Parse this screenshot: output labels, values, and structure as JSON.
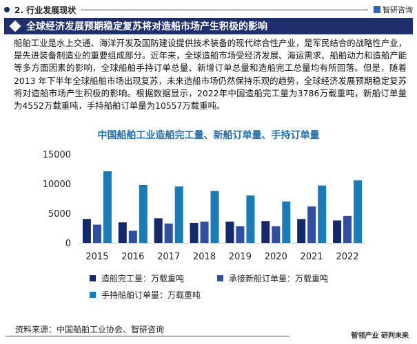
{
  "header": {
    "section": "2. 行业发展现状",
    "brand": "智研咨询",
    "banner": "全球经济发展预期稳定复苏将对造船市场产生积极的影响"
  },
  "body_text": "船舶工业是水上交通、海洋开发及国防建设提供技术装备的现代综合性产业，是军民结合的战略性产业，是先进装备制造业的重要组成部分。近年来，全球造船市场受经济发展、海运需求、船舶动力和造船产能等多方面因素的影响，全球船舶手持订单总量、新增订单总量和造船完工总量均有所回落。但是，随着2013 年下半年全球船舶市场出现复苏，未来造船市场仍然保持乐观的趋势，全球经济发展预期稳定复苏将对造船市场产生积极的影响。根据数据显示，2022年中国造船完工量为3786万载重吨，新船订单量为4552万载重吨，手持船舶订单量为10557万载重吨。",
  "chart_data": {
    "type": "bar",
    "title": "中国船舶工业造船完工量、新船订单量、手持订单量",
    "categories": [
      "2015",
      "2016",
      "2017",
      "2018",
      "2019",
      "2020",
      "2021",
      "2022"
    ],
    "ylim": [
      0,
      15000
    ],
    "yticks": [
      "0",
      "5000",
      "10000",
      "15000"
    ],
    "grid": false,
    "legend_position": "bottom",
    "series": [
      {
        "name": "造船完工量：万载重吨",
        "color": "#14296b",
        "values": [
          4040,
          3460,
          4150,
          3380,
          3580,
          3690,
          4040,
          3786
        ]
      },
      {
        "name": "承接新船订单量：万载重吨",
        "color": "#2f50a0",
        "values": [
          3080,
          2040,
          3270,
          3580,
          2810,
          2810,
          6150,
          4552
        ]
      },
      {
        "name": "手持船舶订单量：万载重吨",
        "color": "#1a7bb9",
        "values": [
          12100,
          9770,
          9540,
          8770,
          8000,
          7000,
          9690,
          10557
        ]
      }
    ]
  },
  "footer": {
    "source": "资料来源：中国船舶工业协会、智研咨询",
    "slogan": "智领产业 研判未来"
  }
}
